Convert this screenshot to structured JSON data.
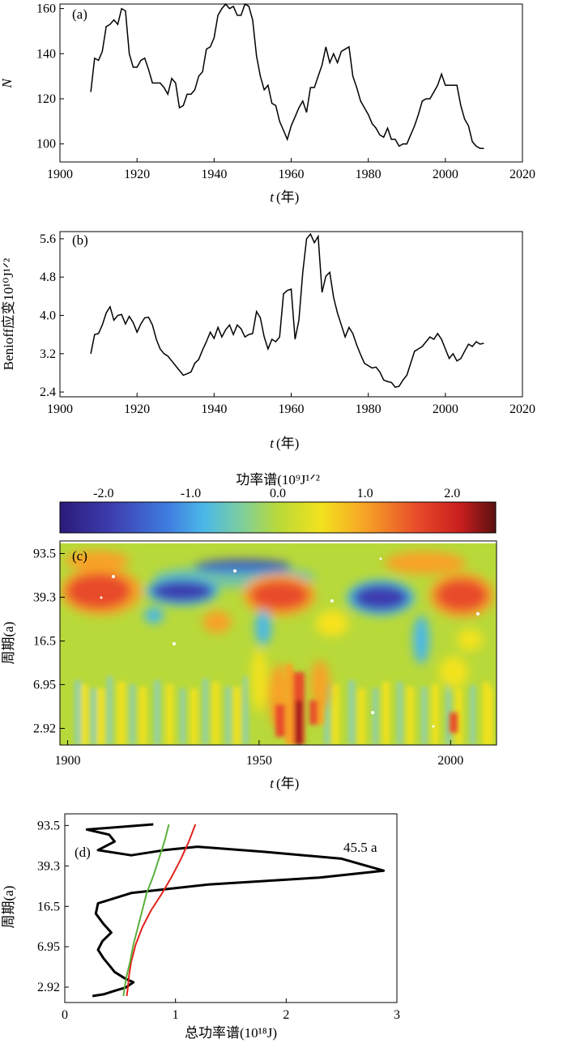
{
  "chart_data": [
    {
      "panel": "(a)",
      "type": "line",
      "ylabel": "N",
      "xlabel_t": "t",
      "xlabel_unit": "(年)",
      "xlim": [
        1900,
        2020
      ],
      "ylim": [
        92,
        162
      ],
      "xticks": [
        1900,
        1920,
        1940,
        1960,
        1980,
        2000,
        2020
      ],
      "yticks": [
        100,
        120,
        140,
        160
      ],
      "x": [
        1908,
        1909,
        1910,
        1911,
        1912,
        1913,
        1914,
        1915,
        1916,
        1917,
        1918,
        1919,
        1920,
        1921,
        1922,
        1923,
        1924,
        1925,
        1926,
        1927,
        1928,
        1929,
        1930,
        1931,
        1932,
        1933,
        1934,
        1935,
        1936,
        1937,
        1938,
        1939,
        1940,
        1941,
        1942,
        1943,
        1944,
        1945,
        1946,
        1947,
        1948,
        1949,
        1950,
        1951,
        1952,
        1953,
        1954,
        1955,
        1956,
        1957,
        1958,
        1959,
        1960,
        1961,
        1962,
        1963,
        1964,
        1965,
        1966,
        1967,
        1968,
        1969,
        1970,
        1971,
        1972,
        1973,
        1974,
        1975,
        1976,
        1977,
        1978,
        1979,
        1980,
        1981,
        1982,
        1983,
        1984,
        1985,
        1986,
        1987,
        1988,
        1989,
        1990,
        1991,
        1992,
        1993,
        1994,
        1995,
        1996,
        1997,
        1998,
        1999,
        2000,
        2001,
        2002,
        2003,
        2004,
        2005,
        2006,
        2007,
        2008,
        2009,
        2010
      ],
      "y": [
        123,
        138,
        137,
        141,
        152,
        153,
        155,
        153,
        160,
        159,
        140,
        134,
        134,
        137,
        138,
        133,
        127,
        127,
        127,
        125,
        122,
        129,
        127,
        116,
        117,
        122,
        122,
        124,
        130,
        132,
        142,
        143,
        147,
        157,
        160,
        162,
        160,
        161,
        157,
        157,
        162,
        161,
        155,
        139,
        130,
        124,
        126,
        118,
        117,
        110,
        106,
        102,
        108,
        112,
        116,
        119,
        114,
        125,
        125,
        130,
        135,
        143,
        136,
        140,
        136,
        141,
        142,
        143,
        130,
        125,
        119,
        116,
        113,
        109,
        107,
        104,
        103,
        107,
        102,
        102,
        99,
        100,
        100,
        104,
        108,
        113,
        119,
        120,
        120,
        123,
        126,
        131,
        126,
        126,
        126,
        126,
        117,
        111,
        108,
        101,
        99,
        98,
        98
      ]
    },
    {
      "panel": "(b)",
      "type": "line",
      "ylabel": "Benioff应变10¹⁰J¹ᐟ²",
      "xlabel_t": "t",
      "xlabel_unit": "(年)",
      "xlim": [
        1900,
        2020
      ],
      "ylim": [
        2.3,
        5.75
      ],
      "xticks": [
        1900,
        1920,
        1940,
        1960,
        1980,
        2000,
        2020
      ],
      "yticks": [
        "2.4",
        "3.2",
        "4.0",
        "4.8",
        "5.6"
      ],
      "x": [
        1908,
        1909,
        1910,
        1911,
        1912,
        1913,
        1914,
        1915,
        1916,
        1917,
        1918,
        1919,
        1920,
        1921,
        1922,
        1923,
        1924,
        1925,
        1926,
        1927,
        1928,
        1929,
        1930,
        1931,
        1932,
        1933,
        1934,
        1935,
        1936,
        1937,
        1938,
        1939,
        1940,
        1941,
        1942,
        1943,
        1944,
        1945,
        1946,
        1947,
        1948,
        1949,
        1950,
        1951,
        1952,
        1953,
        1954,
        1955,
        1956,
        1957,
        1958,
        1959,
        1960,
        1961,
        1962,
        1963,
        1964,
        1965,
        1966,
        1967,
        1968,
        1969,
        1970,
        1971,
        1972,
        1973,
        1974,
        1975,
        1976,
        1977,
        1978,
        1979,
        1980,
        1981,
        1982,
        1983,
        1984,
        1985,
        1986,
        1987,
        1988,
        1989,
        1990,
        1991,
        1992,
        1993,
        1994,
        1995,
        1996,
        1997,
        1998,
        1999,
        2000,
        2001,
        2002,
        2003,
        2004,
        2005,
        2006,
        2007,
        2008,
        2009,
        2010
      ],
      "y": [
        3.2,
        3.6,
        3.62,
        3.8,
        4.05,
        4.18,
        3.9,
        4.0,
        4.02,
        3.82,
        3.98,
        3.85,
        3.65,
        3.82,
        3.95,
        3.96,
        3.8,
        3.5,
        3.3,
        3.2,
        3.15,
        3.05,
        2.95,
        2.85,
        2.75,
        2.78,
        2.82,
        3.0,
        3.08,
        3.28,
        3.45,
        3.65,
        3.52,
        3.75,
        3.55,
        3.7,
        3.8,
        3.6,
        3.8,
        3.72,
        3.55,
        3.6,
        3.62,
        4.08,
        3.95,
        3.55,
        3.3,
        3.5,
        3.45,
        3.55,
        4.45,
        4.52,
        4.55,
        3.5,
        3.9,
        4.9,
        5.6,
        5.7,
        5.52,
        5.65,
        4.48,
        4.82,
        4.9,
        4.38,
        4.05,
        3.8,
        3.55,
        3.75,
        3.62,
        3.38,
        3.18,
        3.0,
        2.95,
        2.9,
        2.92,
        2.82,
        2.65,
        2.62,
        2.6,
        2.5,
        2.52,
        2.65,
        2.75,
        3.0,
        3.25,
        3.3,
        3.35,
        3.45,
        3.55,
        3.5,
        3.62,
        3.5,
        3.3,
        3.1,
        3.2,
        3.05,
        3.1,
        3.25,
        3.4,
        3.35,
        3.45,
        3.4,
        3.42
      ]
    },
    {
      "panel": "(c)",
      "type": "heatmap",
      "colorbar_label": "功率谱(10⁹J¹ᐟ²",
      "colorbar_ticks": [
        "-2.0",
        "-1.0",
        "0.0",
        "1.0",
        "2.0"
      ],
      "colorbar_range": [
        -2.5,
        2.5
      ],
      "ylabel": "周期(a)",
      "yticks": [
        "93.5",
        "39.3",
        "16.5",
        "6.95",
        "2.92"
      ],
      "xticks": [
        "1900",
        "1950",
        "2000"
      ],
      "xlabel_t": "t",
      "xlabel_unit": "(年)",
      "xlim": [
        1898,
        2012
      ]
    },
    {
      "panel": "(d)",
      "type": "line",
      "annotation": "45.5 a",
      "ylabel": "周期(a)",
      "yticks": [
        "93.5",
        "39.3",
        "16.5",
        "6.95",
        "2.92"
      ],
      "xticks": [
        "0",
        "1",
        "2",
        "3"
      ],
      "xlabel": "总功率谱(10¹⁸J)",
      "xlim": [
        0,
        3
      ],
      "series": [
        {
          "color": "#000000",
          "x": [
            0.8,
            0.2,
            0.4,
            0.45,
            0.3,
            0.6,
            0.9,
            1.2,
            1.8,
            2.5,
            2.88,
            2.3,
            1.3,
            0.6,
            0.3,
            0.28,
            0.35,
            0.42,
            0.34,
            0.3,
            0.35,
            0.4,
            0.45,
            0.55,
            0.62,
            0.55,
            0.45,
            0.35,
            0.25
          ],
          "y": [
            0.0,
            0.03,
            0.06,
            0.1,
            0.15,
            0.18,
            0.15,
            0.13,
            0.16,
            0.2,
            0.27,
            0.31,
            0.35,
            0.4,
            0.46,
            0.52,
            0.58,
            0.63,
            0.68,
            0.73,
            0.78,
            0.82,
            0.86,
            0.9,
            0.92,
            0.95,
            0.97,
            0.99,
            1.0
          ]
        },
        {
          "color": "#e3221c",
          "x": [
            1.18,
            1.12,
            1.05,
            0.97,
            0.88,
            0.78,
            0.7,
            0.64,
            0.6,
            0.58,
            0.57,
            0.56
          ],
          "y": [
            0.0,
            0.1,
            0.2,
            0.3,
            0.4,
            0.5,
            0.6,
            0.7,
            0.8,
            0.88,
            0.95,
            1.0
          ]
        },
        {
          "color": "#5bb03b",
          "x": [
            0.94,
            0.9,
            0.85,
            0.8,
            0.74,
            0.7,
            0.66,
            0.62,
            0.59,
            0.56,
            0.54,
            0.53
          ],
          "y": [
            0.0,
            0.1,
            0.2,
            0.3,
            0.4,
            0.5,
            0.6,
            0.7,
            0.8,
            0.88,
            0.95,
            1.0
          ]
        }
      ]
    }
  ]
}
